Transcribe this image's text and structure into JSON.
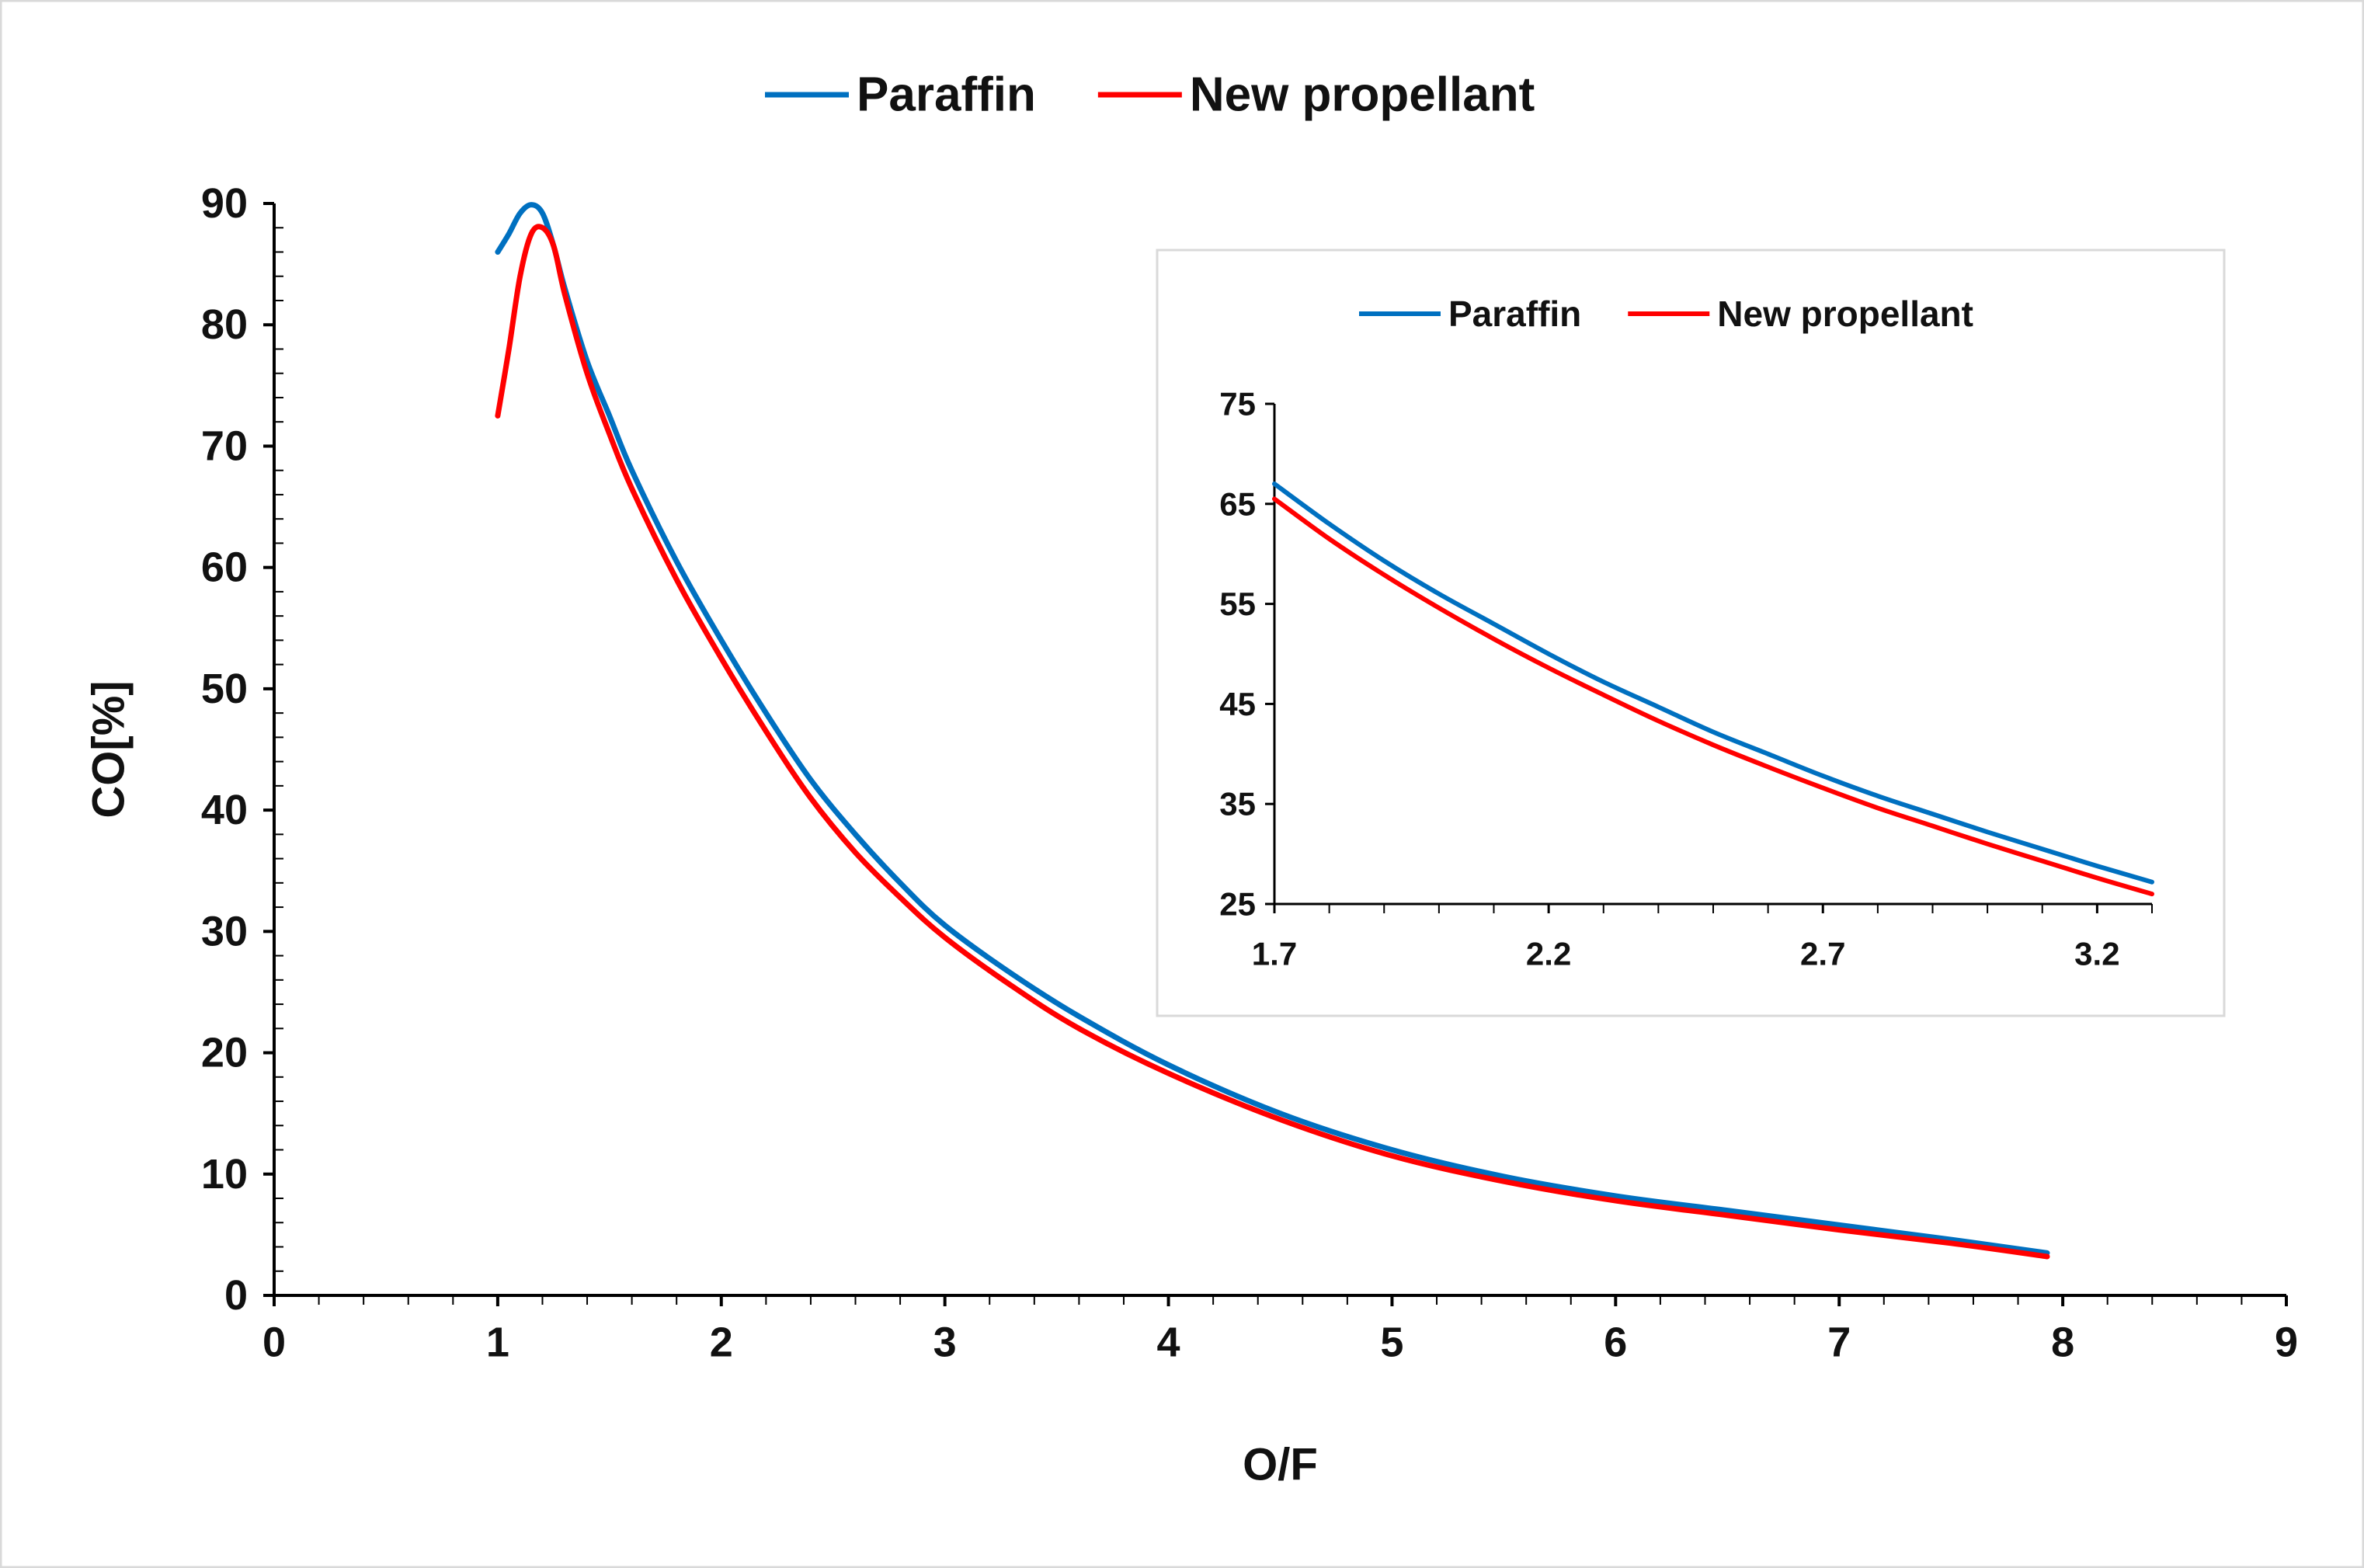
{
  "colors": {
    "paraffin": "#0070C0",
    "new_propellant": "#FF0000",
    "axis": "#000000",
    "frame": "#D9D9D9",
    "text": "#111111"
  },
  "chart_data": [
    {
      "id": "main",
      "type": "line",
      "title": "",
      "xlabel": "O/F",
      "ylabel": "CO[%]",
      "xlim": [
        0,
        9
      ],
      "ylim": [
        0,
        90
      ],
      "xticks": [
        0,
        1,
        2,
        3,
        4,
        5,
        6,
        7,
        8,
        9
      ],
      "yticks": [
        0,
        10,
        20,
        30,
        40,
        50,
        60,
        70,
        80,
        90
      ],
      "x_minor_step": 0.2,
      "y_minor_step": 2,
      "grid": false,
      "legend_position": "top-center",
      "series": [
        {
          "name": "Paraffin",
          "color_key": "paraffin",
          "x": [
            1.0,
            1.05,
            1.1,
            1.15,
            1.2,
            1.25,
            1.3,
            1.4,
            1.5,
            1.6,
            1.8,
            2.0,
            2.2,
            2.4,
            2.6,
            2.8,
            3.0,
            3.3,
            3.6,
            4.0,
            4.5,
            5.0,
            5.5,
            6.0,
            6.5,
            7.0,
            7.5,
            7.93
          ],
          "y": [
            86,
            87.5,
            89.2,
            89.9,
            89.2,
            86.5,
            83,
            77,
            72.5,
            68,
            60.5,
            54,
            48,
            42.5,
            38,
            34,
            30.5,
            26.5,
            23,
            19,
            15,
            12,
            9.8,
            8.2,
            7,
            5.8,
            4.6,
            3.5
          ]
        },
        {
          "name": "New propellant",
          "color_key": "new_propellant",
          "x": [
            1.0,
            1.05,
            1.1,
            1.15,
            1.2,
            1.25,
            1.3,
            1.4,
            1.5,
            1.6,
            1.8,
            2.0,
            2.2,
            2.4,
            2.6,
            2.8,
            3.0,
            3.3,
            3.6,
            4.0,
            4.5,
            5.0,
            5.5,
            6.0,
            6.5,
            7.0,
            7.5,
            7.93
          ],
          "y": [
            72.5,
            78,
            84,
            87.5,
            88,
            86.5,
            82.5,
            76,
            71,
            66.5,
            59,
            52.5,
            46.5,
            41,
            36.5,
            32.8,
            29.5,
            25.5,
            22,
            18.3,
            14.5,
            11.5,
            9.4,
            7.8,
            6.6,
            5.4,
            4.3,
            3.2
          ]
        }
      ]
    },
    {
      "id": "inset",
      "type": "line",
      "title": "",
      "xlabel": "",
      "ylabel": "",
      "xlim": [
        1.7,
        3.3
      ],
      "ylim": [
        25,
        75
      ],
      "xticks": [
        1.7,
        2.2,
        2.7,
        3.2
      ],
      "yticks": [
        25,
        35,
        45,
        55,
        65,
        75
      ],
      "x_minor_step": 0.1,
      "grid": false,
      "legend_position": "top-center",
      "series": [
        {
          "name": "Paraffin",
          "color_key": "paraffin",
          "x": [
            1.7,
            1.8,
            1.9,
            2.0,
            2.1,
            2.2,
            2.3,
            2.4,
            2.5,
            2.6,
            2.7,
            2.8,
            2.9,
            3.0,
            3.1,
            3.2,
            3.3
          ],
          "y": [
            67,
            63,
            59.3,
            56,
            53,
            50,
            47.2,
            44.7,
            42.2,
            40,
            37.8,
            35.8,
            34,
            32.2,
            30.5,
            28.8,
            27.2
          ]
        },
        {
          "name": "New propellant",
          "color_key": "new_propellant",
          "x": [
            1.7,
            1.8,
            1.9,
            2.0,
            2.1,
            2.2,
            2.3,
            2.4,
            2.5,
            2.6,
            2.7,
            2.8,
            2.9,
            3.0,
            3.1,
            3.2,
            3.3
          ],
          "y": [
            65.5,
            61.5,
            57.9,
            54.6,
            51.5,
            48.6,
            45.9,
            43.3,
            40.9,
            38.7,
            36.6,
            34.6,
            32.8,
            31,
            29.3,
            27.6,
            26
          ]
        }
      ]
    }
  ]
}
